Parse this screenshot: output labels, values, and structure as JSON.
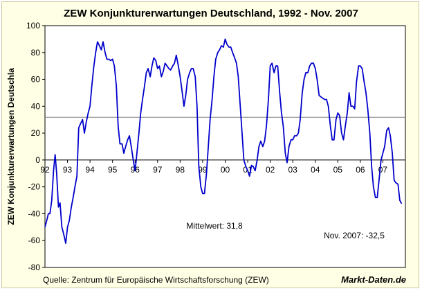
{
  "chart_data": {
    "type": "line",
    "title": "ZEW Konjunkturerwartungen Deutschland, 1992 - Nov. 2007",
    "ylabel": "ZEW Konjunkturerwartungen Deutschla",
    "xlabel": "",
    "ylim": [
      -80,
      100
    ],
    "yticks": [
      -80,
      -60,
      -40,
      -20,
      0,
      20,
      40,
      60,
      80,
      100
    ],
    "x_tick_labels": [
      "92",
      "93",
      "94",
      "95",
      "96",
      "97",
      "98",
      "99",
      "00",
      "01",
      "02",
      "03",
      "04",
      "05",
      "06",
      "07"
    ],
    "xlim": [
      1992.0,
      2008.0
    ],
    "grid": "none",
    "legend": "none",
    "reference_line": {
      "value": 31.8,
      "label": "Mittelwert: 31,8"
    },
    "last_value_note": "Nov. 2007: -32,5",
    "series": [
      {
        "color": "#0000cc",
        "points": [
          [
            1992.0,
            -50
          ],
          [
            1992.08,
            -45
          ],
          [
            1992.15,
            -40
          ],
          [
            1992.22,
            -40
          ],
          [
            1992.3,
            -30
          ],
          [
            1992.38,
            -8
          ],
          [
            1992.45,
            4
          ],
          [
            1992.52,
            -10
          ],
          [
            1992.6,
            -35
          ],
          [
            1992.67,
            -32
          ],
          [
            1992.75,
            -50
          ],
          [
            1992.83,
            -55
          ],
          [
            1992.92,
            -62
          ],
          [
            1993.0,
            -50
          ],
          [
            1993.08,
            -45
          ],
          [
            1993.17,
            -35
          ],
          [
            1993.25,
            -28
          ],
          [
            1993.33,
            -20
          ],
          [
            1993.42,
            -12
          ],
          [
            1993.5,
            24
          ],
          [
            1993.58,
            27
          ],
          [
            1993.67,
            30
          ],
          [
            1993.75,
            20
          ],
          [
            1993.83,
            28
          ],
          [
            1993.92,
            35
          ],
          [
            1994.0,
            40
          ],
          [
            1994.08,
            55
          ],
          [
            1994.17,
            70
          ],
          [
            1994.25,
            80
          ],
          [
            1994.33,
            88
          ],
          [
            1994.42,
            85
          ],
          [
            1994.5,
            82
          ],
          [
            1994.58,
            88
          ],
          [
            1994.67,
            80
          ],
          [
            1994.75,
            75
          ],
          [
            1994.83,
            75
          ],
          [
            1994.92,
            74
          ],
          [
            1995.0,
            75
          ],
          [
            1995.08,
            70
          ],
          [
            1995.17,
            55
          ],
          [
            1995.25,
            25
          ],
          [
            1995.33,
            12
          ],
          [
            1995.42,
            12
          ],
          [
            1995.5,
            5
          ],
          [
            1995.58,
            10
          ],
          [
            1995.67,
            15
          ],
          [
            1995.75,
            18
          ],
          [
            1995.83,
            10
          ],
          [
            1995.92,
            0
          ],
          [
            1996.0,
            -8
          ],
          [
            1996.08,
            5
          ],
          [
            1996.17,
            20
          ],
          [
            1996.25,
            35
          ],
          [
            1996.33,
            45
          ],
          [
            1996.42,
            55
          ],
          [
            1996.5,
            65
          ],
          [
            1996.58,
            68
          ],
          [
            1996.67,
            62
          ],
          [
            1996.75,
            70
          ],
          [
            1996.83,
            76
          ],
          [
            1996.92,
            74
          ],
          [
            1997.0,
            68
          ],
          [
            1997.08,
            70
          ],
          [
            1997.17,
            62
          ],
          [
            1997.25,
            66
          ],
          [
            1997.33,
            72
          ],
          [
            1997.42,
            70
          ],
          [
            1997.5,
            68
          ],
          [
            1997.58,
            67
          ],
          [
            1997.67,
            70
          ],
          [
            1997.75,
            72
          ],
          [
            1997.83,
            78
          ],
          [
            1997.92,
            70
          ],
          [
            1998.0,
            62
          ],
          [
            1998.08,
            52
          ],
          [
            1998.17,
            40
          ],
          [
            1998.25,
            48
          ],
          [
            1998.33,
            60
          ],
          [
            1998.42,
            65
          ],
          [
            1998.5,
            68
          ],
          [
            1998.58,
            68
          ],
          [
            1998.67,
            62
          ],
          [
            1998.75,
            40
          ],
          [
            1998.83,
            -5
          ],
          [
            1998.92,
            -20
          ],
          [
            1999.0,
            -25
          ],
          [
            1999.08,
            -25
          ],
          [
            1999.17,
            -10
          ],
          [
            1999.25,
            10
          ],
          [
            1999.33,
            30
          ],
          [
            1999.42,
            45
          ],
          [
            1999.5,
            62
          ],
          [
            1999.58,
            75
          ],
          [
            1999.67,
            80
          ],
          [
            1999.75,
            82
          ],
          [
            1999.83,
            85
          ],
          [
            1999.92,
            84
          ],
          [
            2000.0,
            90
          ],
          [
            2000.08,
            86
          ],
          [
            2000.17,
            84
          ],
          [
            2000.25,
            84
          ],
          [
            2000.33,
            80
          ],
          [
            2000.42,
            76
          ],
          [
            2000.5,
            72
          ],
          [
            2000.58,
            62
          ],
          [
            2000.67,
            40
          ],
          [
            2000.75,
            20
          ],
          [
            2000.83,
            0
          ],
          [
            2000.92,
            -5
          ],
          [
            2001.0,
            -8
          ],
          [
            2001.08,
            -12
          ],
          [
            2001.17,
            -4
          ],
          [
            2001.25,
            -5
          ],
          [
            2001.33,
            -8
          ],
          [
            2001.42,
            0
          ],
          [
            2001.5,
            10
          ],
          [
            2001.58,
            14
          ],
          [
            2001.67,
            10
          ],
          [
            2001.75,
            14
          ],
          [
            2001.83,
            25
          ],
          [
            2001.92,
            45
          ],
          [
            2002.0,
            70
          ],
          [
            2002.08,
            72
          ],
          [
            2002.17,
            65
          ],
          [
            2002.25,
            70
          ],
          [
            2002.33,
            70
          ],
          [
            2002.42,
            50
          ],
          [
            2002.5,
            35
          ],
          [
            2002.58,
            25
          ],
          [
            2002.67,
            5
          ],
          [
            2002.75,
            -2
          ],
          [
            2002.83,
            10
          ],
          [
            2002.92,
            15
          ],
          [
            2003.0,
            15
          ],
          [
            2003.08,
            18
          ],
          [
            2003.17,
            18
          ],
          [
            2003.25,
            20
          ],
          [
            2003.33,
            30
          ],
          [
            2003.42,
            50
          ],
          [
            2003.5,
            60
          ],
          [
            2003.58,
            65
          ],
          [
            2003.67,
            65
          ],
          [
            2003.75,
            70
          ],
          [
            2003.83,
            72
          ],
          [
            2003.92,
            72
          ],
          [
            2004.0,
            68
          ],
          [
            2004.08,
            60
          ],
          [
            2004.17,
            48
          ],
          [
            2004.25,
            47
          ],
          [
            2004.33,
            46
          ],
          [
            2004.42,
            45
          ],
          [
            2004.5,
            45
          ],
          [
            2004.58,
            40
          ],
          [
            2004.67,
            25
          ],
          [
            2004.75,
            15
          ],
          [
            2004.83,
            15
          ],
          [
            2004.92,
            30
          ],
          [
            2005.0,
            35
          ],
          [
            2005.08,
            33
          ],
          [
            2005.17,
            20
          ],
          [
            2005.25,
            15
          ],
          [
            2005.33,
            25
          ],
          [
            2005.42,
            35
          ],
          [
            2005.5,
            50
          ],
          [
            2005.58,
            40
          ],
          [
            2005.67,
            40
          ],
          [
            2005.75,
            38
          ],
          [
            2005.83,
            58
          ],
          [
            2005.92,
            70
          ],
          [
            2006.0,
            70
          ],
          [
            2006.08,
            68
          ],
          [
            2006.17,
            58
          ],
          [
            2006.25,
            50
          ],
          [
            2006.33,
            38
          ],
          [
            2006.42,
            20
          ],
          [
            2006.5,
            -5
          ],
          [
            2006.58,
            -20
          ],
          [
            2006.67,
            -28
          ],
          [
            2006.75,
            -28
          ],
          [
            2006.83,
            -15
          ],
          [
            2006.92,
            0
          ],
          [
            2007.0,
            5
          ],
          [
            2007.08,
            10
          ],
          [
            2007.17,
            22
          ],
          [
            2007.25,
            24
          ],
          [
            2007.33,
            18
          ],
          [
            2007.42,
            5
          ],
          [
            2007.5,
            -15
          ],
          [
            2007.58,
            -17
          ],
          [
            2007.67,
            -18
          ],
          [
            2007.75,
            -30
          ],
          [
            2007.83,
            -32.5
          ]
        ]
      }
    ]
  },
  "footer": {
    "source": "Quelle:  Zentrum für Europäische Wirtschaftsforschung (ZEW)",
    "brand": "Markt-Daten.de"
  }
}
